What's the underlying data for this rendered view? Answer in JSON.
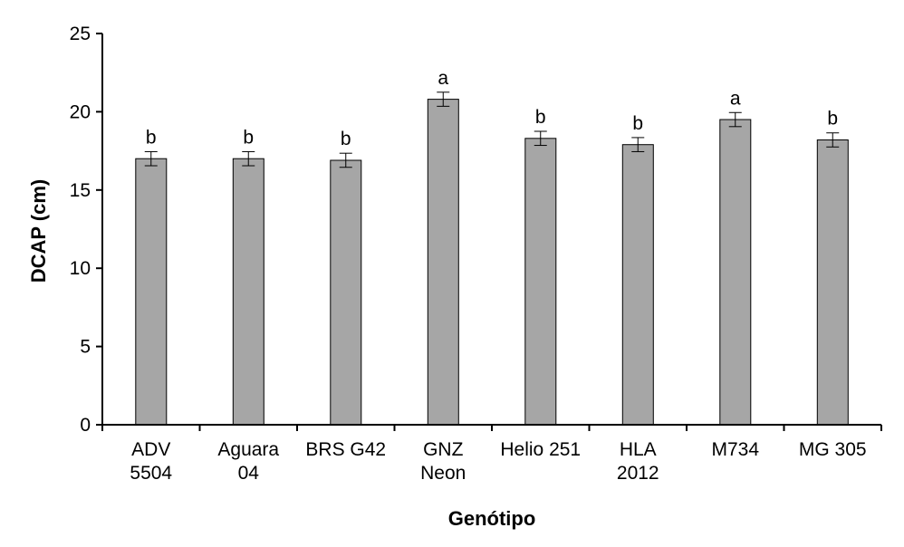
{
  "chart_data": {
    "type": "bar",
    "title": "",
    "xlabel": "Genótipo",
    "ylabel": "DCAP (cm)",
    "ylim": [
      0,
      25
    ],
    "yticks": [
      0,
      5,
      10,
      15,
      20,
      25
    ],
    "grid": false,
    "legend": "none",
    "categories": [
      [
        "ADV",
        "5504"
      ],
      [
        "Aguara",
        "04"
      ],
      [
        "BRS G42"
      ],
      [
        "GNZ",
        "Neon"
      ],
      [
        "Helio 251"
      ],
      [
        "HLA",
        "2012"
      ],
      [
        "M734"
      ],
      [
        "MG 305"
      ]
    ],
    "values": [
      17.0,
      17.0,
      16.9,
      20.8,
      18.3,
      17.9,
      19.5,
      18.2
    ],
    "errors": [
      0.45,
      0.45,
      0.45,
      0.45,
      0.45,
      0.45,
      0.45,
      0.45
    ],
    "significance": [
      "b",
      "b",
      "b",
      "a",
      "b",
      "b",
      "a",
      "b"
    ],
    "bar_color": "#a6a6a6",
    "bar_edge_color": "#000000"
  }
}
